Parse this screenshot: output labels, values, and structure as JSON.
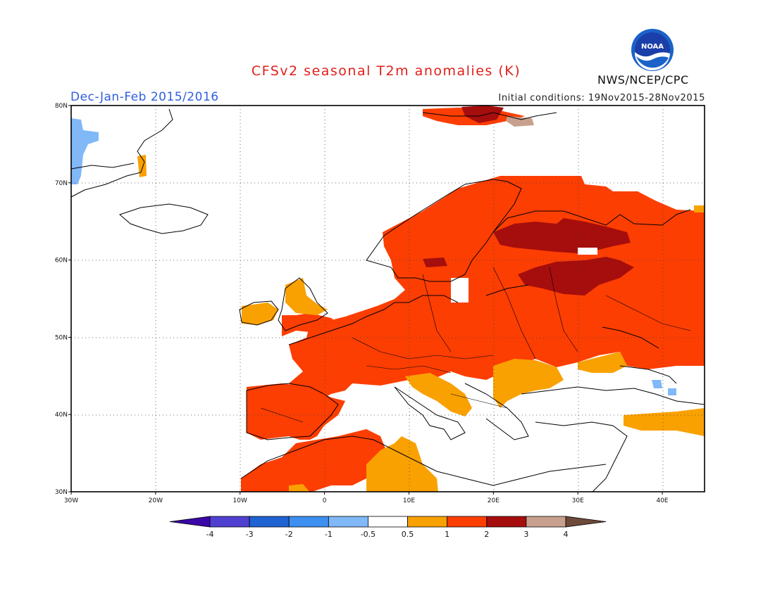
{
  "title": "CFSv2 seasonal T2m anomalies (K)",
  "season": "Dec-Jan-Feb 2015/2016",
  "initial_conditions": "Initial conditions: 19Nov2015-28Nov2015",
  "agency": "NWS/NCEP/CPC",
  "logo_text": "NOAA",
  "map": {
    "lon_range": [
      -30,
      45
    ],
    "lat_range": [
      30,
      80
    ],
    "lon_ticks": [
      {
        "lon": -30,
        "label": "30W"
      },
      {
        "lon": -20,
        "label": "20W"
      },
      {
        "lon": -10,
        "label": "10W"
      },
      {
        "lon": 0,
        "label": "0"
      },
      {
        "lon": 10,
        "label": "10E"
      },
      {
        "lon": 20,
        "label": "20E"
      },
      {
        "lon": 30,
        "label": "30E"
      },
      {
        "lon": 40,
        "label": "40E"
      }
    ],
    "lat_ticks": [
      {
        "lat": 80,
        "label": "80N"
      },
      {
        "lat": 70,
        "label": "70N"
      },
      {
        "lat": 60,
        "label": "60N"
      },
      {
        "lat": 50,
        "label": "50N"
      },
      {
        "lat": 40,
        "label": "40N"
      },
      {
        "lat": 30,
        "label": "30N"
      }
    ],
    "colors": {
      "c05_1": "#f9a100",
      "c1_2": "#fc3e02",
      "c2_3": "#a60d0d",
      "c3_4": "#c8a08e",
      "cm1_m05": "#80b8f8",
      "coast": "#000000"
    }
  },
  "colorbar": {
    "colors": [
      "#3c07a8",
      "#5040d0",
      "#1f62d2",
      "#3d8ff0",
      "#80b8f8",
      "#ffffff",
      "#f9a100",
      "#fc3e02",
      "#a60d0d",
      "#c8a08e",
      "#6e4a3a"
    ],
    "labels": [
      "-4",
      "-3",
      "-2",
      "-1",
      "-0.5",
      "0.5",
      "1",
      "2",
      "3",
      "4"
    ]
  }
}
